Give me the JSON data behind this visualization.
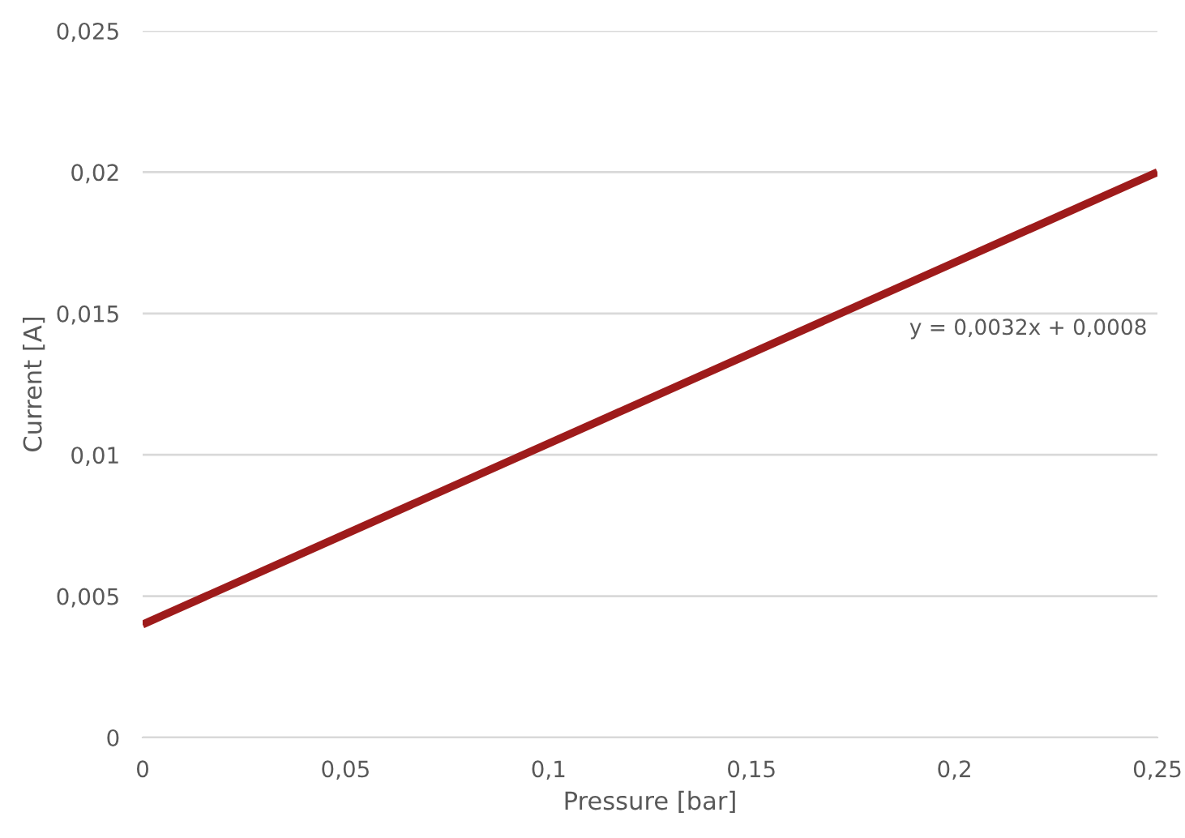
{
  "chart_data": {
    "type": "line",
    "xlabel": "Pressure [bar]",
    "ylabel": "Current [A]",
    "x": [
      0,
      0.25
    ],
    "series": [
      {
        "color": "#9e1b1b",
        "values": [
          0.004,
          0.02
        ]
      }
    ],
    "annotations": [
      "y = 0,0032x + 0,0008"
    ],
    "xlim": [
      0,
      0.25
    ],
    "ylim": [
      0,
      0.025
    ],
    "xticks": [
      0,
      {
        "value": 0.05,
        "label": "0,05"
      },
      {
        "value": 0.1,
        "label": "0,1"
      },
      {
        "value": 0.15,
        "label": "0,15"
      },
      {
        "value": 0.2,
        "label": "0,2"
      },
      {
        "value": 0.25,
        "label": "0,25"
      }
    ],
    "yticks": [
      0,
      {
        "value": 0.005,
        "label": "0,005"
      },
      {
        "value": 0.01,
        "label": "0,01"
      },
      {
        "value": 0.015,
        "label": "0,015"
      },
      {
        "value": 0.02,
        "label": "0,02"
      },
      {
        "value": 0.025,
        "label": "0,025"
      }
    ],
    "grid": "y",
    "legend": false,
    "marker": "none",
    "line_style": "solid"
  }
}
